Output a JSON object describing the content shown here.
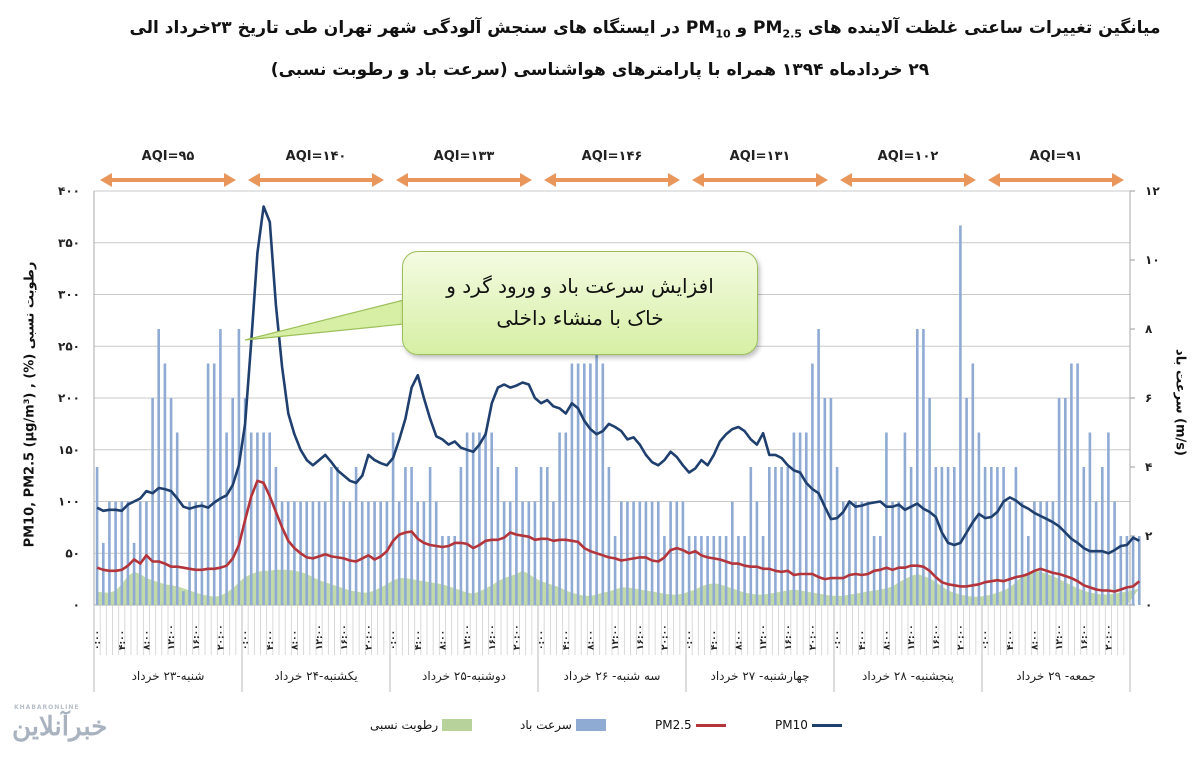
{
  "title": {
    "line1_pre": "میانگین تغییرات ساعتی غلظت آلاینده های PM",
    "line1_sub1": "2.5",
    "line1_mid": "و PM",
    "line1_sub2": "10",
    "line1_post": " در ایستگاه های سنجش آلودگی شهر تهران طی تاریخ ۲۳خرداد الی",
    "line2": "۲۹ خردادماه ۱۳۹۴ همراه با پارامترهای هواشناسی (سرعت باد و رطوبت نسبی)"
  },
  "callout": {
    "line1": "افزایش سرعت باد و ورود گرد و",
    "line2": "خاک با منشاء داخلی"
  },
  "axes": {
    "left_label": "PM10, PM2.5 (µg/m³) , (%) رطوبت نسبی",
    "right_label": "سرعت باد (m/s)"
  },
  "legend": {
    "humidity": "رطوبت نسبی",
    "wind": "سرعت باد",
    "pm25": "PM2.5",
    "pm10": "PM10"
  },
  "watermark": {
    "text": "خبرآنلاین",
    "small": "KHABARONLINE"
  },
  "colors": {
    "pm10": "#1f3f6e",
    "pm25": "#b3343a",
    "wind": "#8fabd4",
    "humidity": "#b7d29a",
    "aqi_arrow": "#e8965a",
    "grid": "#c9c9c9"
  },
  "chart_data": {
    "type": "line",
    "title": "میانگین تغییرات ساعتی غلظت آلاینده های PM2.5 و PM10 در ایستگاه های سنجش آلودگی شهر تهران طی تاریخ ۲۳خرداد الی ۲۹ خردادماه ۱۳۹۴ همراه با پارامترهای هواشناسی (سرعت باد و رطوبت نسبی)",
    "xlabel": "",
    "ylabel": "PM10, PM2.5 (µg/m³) , (%) رطوبت نسبی",
    "y2label": "سرعت باد (m/s)",
    "ylim": [
      0,
      400
    ],
    "y2lim": [
      0,
      12
    ],
    "yticks": [
      "۰",
      "۵۰",
      "۱۰۰",
      "۱۵۰",
      "۲۰۰",
      "۲۵۰",
      "۳۰۰",
      "۳۵۰",
      "۴۰۰"
    ],
    "y2ticks": [
      "۰",
      "۲",
      "۴",
      "۶",
      "۸",
      "۱۰",
      "۱۲"
    ],
    "grid": true,
    "legend_position": "bottom",
    "days": [
      "شنبه-۲۳ خرداد",
      "یکشنبه-۲۴ خرداد",
      "دوشنبه-۲۵ خرداد",
      "سه شنبه- ۲۶ خرداد",
      "چهارشنبه- ۲۷ خرداد",
      "پنجشنبه- ۲۸ خرداد",
      "جمعه- ۲۹ خرداد"
    ],
    "hour_ticks": [
      "۰:۰۰",
      "۴:۰۰",
      "۸:۰۰",
      "۱۲:۰۰",
      "۱۶:۰۰",
      "۲۰:۰۰"
    ],
    "aqi": [
      {
        "day": "شنبه-۲۳ خرداد",
        "label": "AQI=۹۵"
      },
      {
        "day": "یکشنبه-۲۴ خرداد",
        "label": "AQI=۱۴۰"
      },
      {
        "day": "دوشنبه-۲۵ خرداد",
        "label": "AQI=۱۳۳"
      },
      {
        "day": "سه شنبه- ۲۶ خرداد",
        "label": "AQI=۱۴۶"
      },
      {
        "day": "چهارشنبه- ۲۷ خرداد",
        "label": "AQI=۱۳۱"
      },
      {
        "day": "پنجشنبه- ۲۸ خرداد",
        "label": "AQI=۱۰۲"
      },
      {
        "day": "جمعه- ۲۹ خرداد",
        "label": "AQI=۹۱"
      }
    ],
    "series": [
      {
        "name": "PM10",
        "axis": "left",
        "type": "line",
        "values": [
          94,
          91,
          92,
          92,
          91,
          97,
          100,
          103,
          110,
          108,
          113,
          112,
          110,
          103,
          95,
          93,
          95,
          96,
          94,
          99,
          103,
          106,
          116,
          135,
          175,
          255,
          340,
          385,
          370,
          290,
          230,
          185,
          165,
          150,
          140,
          135,
          140,
          145,
          138,
          130,
          125,
          120,
          118,
          125,
          145,
          140,
          137,
          135,
          142,
          160,
          180,
          210,
          222,
          200,
          180,
          163,
          160,
          155,
          158,
          152,
          150,
          148,
          155,
          165,
          195,
          210,
          213,
          210,
          212,
          215,
          213,
          200,
          195,
          198,
          192,
          190,
          185,
          195,
          190,
          178,
          170,
          165,
          168,
          175,
          172,
          168,
          160,
          162,
          155,
          145,
          138,
          135,
          140,
          148,
          143,
          135,
          128,
          132,
          140,
          135,
          145,
          158,
          165,
          170,
          172,
          168,
          160,
          155,
          166,
          145,
          145,
          142,
          135,
          130,
          128,
          118,
          112,
          108,
          95,
          83,
          84,
          90,
          100,
          95,
          96,
          98,
          99,
          100,
          95,
          95,
          97,
          92,
          95,
          98,
          93,
          90,
          85,
          70,
          60,
          58,
          60,
          70,
          80,
          88,
          84,
          85,
          90,
          100,
          104,
          101,
          96,
          93,
          89,
          86,
          83,
          80,
          76,
          70,
          64,
          60,
          55,
          52,
          52,
          52,
          50,
          53,
          57,
          58,
          65,
          62
        ]
      },
      {
        "name": "PM2.5",
        "axis": "left",
        "type": "line",
        "values": [
          36,
          34,
          33,
          33,
          34,
          38,
          44,
          40,
          48,
          42,
          42,
          40,
          37,
          37,
          36,
          35,
          34,
          34,
          35,
          35,
          36,
          38,
          45,
          58,
          82,
          105,
          120,
          118,
          105,
          90,
          75,
          62,
          55,
          50,
          46,
          45,
          47,
          49,
          47,
          46,
          45,
          43,
          42,
          45,
          48,
          44,
          47,
          52,
          62,
          68,
          70,
          71,
          64,
          60,
          58,
          57,
          56,
          57,
          60,
          60,
          59,
          55,
          58,
          62,
          63,
          63,
          65,
          70,
          68,
          67,
          66,
          63,
          64,
          64,
          62,
          63,
          63,
          62,
          61,
          55,
          52,
          50,
          48,
          46,
          45,
          43,
          44,
          45,
          46,
          46,
          43,
          42,
          46,
          53,
          55,
          53,
          50,
          52,
          48,
          46,
          45,
          44,
          42,
          40,
          40,
          38,
          37,
          37,
          35,
          35,
          33,
          32,
          33,
          29,
          30,
          30,
          30,
          27,
          25,
          26,
          26,
          26,
          29,
          30,
          29,
          30,
          33,
          34,
          36,
          34,
          36,
          36,
          38,
          38,
          37,
          33,
          27,
          22,
          20,
          19,
          18,
          18,
          19,
          20,
          22,
          23,
          24,
          23,
          25,
          27,
          28,
          30,
          33,
          35,
          33,
          31,
          30,
          28,
          26,
          23,
          19,
          17,
          15,
          14,
          14,
          13,
          15,
          17,
          18,
          23
        ]
      },
      {
        "name": "سرعت باد",
        "axis": "right",
        "type": "bar",
        "values": [
          4,
          1.8,
          3,
          3,
          3,
          3,
          1.8,
          3,
          3,
          6,
          8,
          7,
          6,
          5,
          0.4,
          3,
          3,
          3,
          7,
          7,
          8,
          5,
          6,
          8,
          6,
          5,
          5,
          5,
          5,
          4,
          3,
          3,
          3,
          3,
          3,
          3,
          3,
          3,
          4,
          4,
          3,
          3,
          4,
          3,
          3,
          3,
          3,
          3,
          5,
          3,
          4,
          4,
          3,
          3,
          4,
          3,
          2,
          2,
          2,
          4,
          5,
          5,
          5,
          5,
          5,
          4,
          3,
          3,
          4,
          3,
          3,
          3,
          4,
          4,
          3,
          5,
          5,
          7,
          7,
          7,
          7,
          8,
          7,
          4,
          2,
          3,
          3,
          3,
          3,
          3,
          3,
          3,
          2,
          3,
          3,
          3,
          2,
          2,
          2,
          2,
          2,
          2,
          2,
          3,
          2,
          2,
          4,
          3,
          2,
          4,
          4,
          4,
          4,
          5,
          5,
          5,
          7,
          8,
          6,
          6,
          4,
          3,
          3,
          3,
          3,
          3,
          2,
          2,
          5,
          3,
          3,
          5,
          4,
          8,
          8,
          6,
          4,
          4,
          4,
          4,
          11,
          6,
          7,
          5,
          4,
          4,
          4,
          4,
          3,
          4,
          3,
          2,
          3,
          3,
          3,
          3,
          6,
          6,
          7,
          7,
          4,
          5,
          3,
          4,
          5,
          3,
          2,
          2,
          2,
          2
        ]
      },
      {
        "name": "رطوبت نسبی",
        "axis": "left",
        "type": "area",
        "values": [
          13,
          12,
          12,
          14,
          20,
          28,
          32,
          30,
          26,
          24,
          22,
          20,
          19,
          18,
          16,
          14,
          12,
          10,
          9,
          8,
          9,
          12,
          16,
          22,
          27,
          30,
          32,
          33,
          33,
          34,
          34,
          34,
          33,
          32,
          30,
          27,
          24,
          22,
          20,
          18,
          16,
          14,
          13,
          12,
          12,
          14,
          17,
          20,
          24,
          26,
          26,
          25,
          24,
          23,
          22,
          21,
          20,
          18,
          16,
          14,
          12,
          11,
          13,
          16,
          19,
          23,
          26,
          28,
          30,
          33,
          30,
          26,
          23,
          21,
          19,
          17,
          14,
          12,
          10,
          9,
          9,
          10,
          12,
          13,
          15,
          17,
          17,
          16,
          15,
          14,
          13,
          12,
          11,
          10,
          10,
          11,
          13,
          15,
          18,
          20,
          21,
          20,
          18,
          16,
          14,
          12,
          11,
          10,
          10,
          11,
          12,
          13,
          14,
          15,
          14,
          13,
          12,
          11,
          10,
          9,
          9,
          9,
          10,
          11,
          12,
          13,
          14,
          15,
          16,
          18,
          22,
          25,
          28,
          30,
          28,
          26,
          22,
          18,
          14,
          12,
          10,
          9,
          8,
          8,
          9,
          10,
          12,
          14,
          17,
          22,
          28,
          32,
          33,
          32,
          30,
          28,
          25,
          22,
          19,
          16,
          14,
          12,
          11,
          10,
          10,
          11,
          12,
          13,
          14,
          16
        ]
      }
    ]
  }
}
